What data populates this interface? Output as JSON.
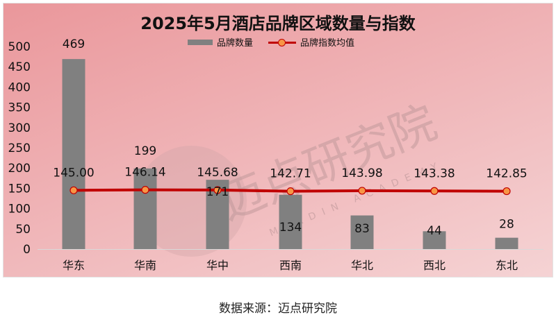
{
  "chart_data": {
    "type": "bar+line",
    "title": "2025年5月酒店品牌区域数量与指数",
    "categories": [
      "华东",
      "华南",
      "华中",
      "西南",
      "华北",
      "西北",
      "东北"
    ],
    "series": [
      {
        "name": "品牌数量",
        "type": "bar",
        "color": "#808080",
        "values": [
          469,
          199,
          171,
          134,
          83,
          44,
          28
        ]
      },
      {
        "name": "品牌指数均值",
        "type": "line",
        "color": "#c00000",
        "marker_color": "#f79646",
        "values": [
          145.0,
          146.14,
          145.68,
          142.71,
          143.98,
          143.38,
          142.85
        ]
      }
    ],
    "value_labels": {
      "bars": [
        "469",
        "199",
        "171",
        "134",
        "83",
        "44",
        "28"
      ],
      "line": [
        "145.00",
        "146.14",
        "145.68",
        "142.71",
        "143.98",
        "143.38",
        "142.85"
      ]
    },
    "xlabel": "",
    "ylabel": "",
    "ylim": [
      0,
      500
    ],
    "yticks": [
      "0",
      "50",
      "100",
      "150",
      "200",
      "250",
      "300",
      "350",
      "400",
      "450",
      "500"
    ],
    "grid": false,
    "legend_position": "top"
  },
  "legend": {
    "bar_label": "品牌数量",
    "line_label": "品牌指数均值"
  },
  "watermark": {
    "cn": "迈点研究院",
    "en": "MEADIN ACADEMY"
  },
  "footer": {
    "source": "数据来源：迈点研究院"
  }
}
